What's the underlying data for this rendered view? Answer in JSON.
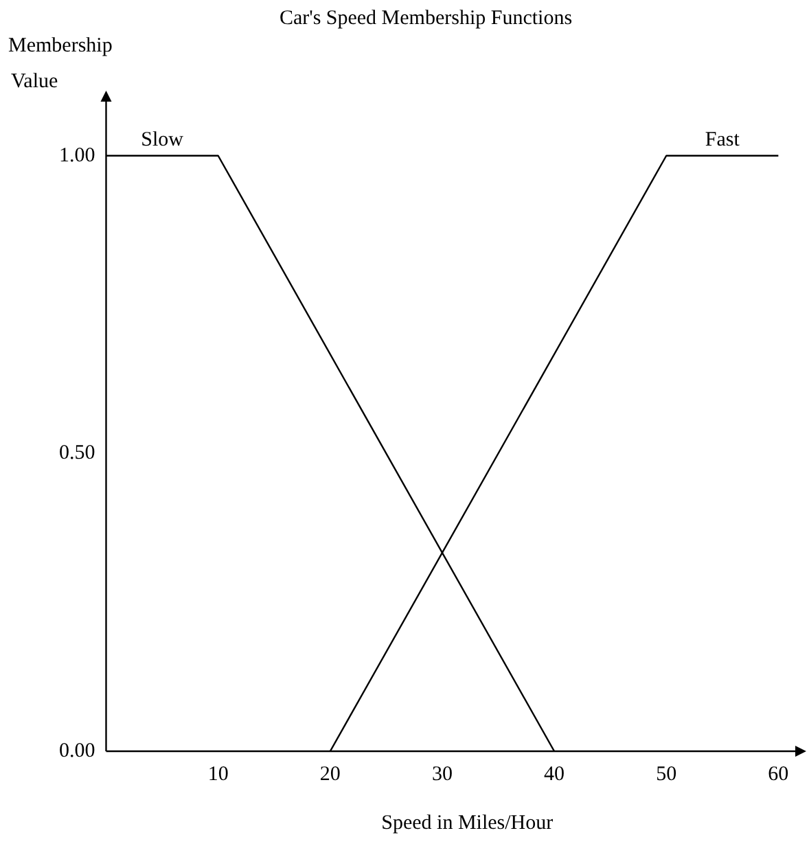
{
  "chart_data": {
    "type": "line",
    "title": "Car's Speed Membership Functions",
    "xlabel": "Speed in Miles/Hour",
    "ylabel": "Membership Value",
    "series": [
      {
        "name": "Slow",
        "color": "#000000",
        "x": [
          0,
          10,
          40
        ],
        "values": [
          1,
          1,
          0
        ]
      },
      {
        "name": "Fast",
        "color": "#000000",
        "x": [
          20,
          50,
          60
        ],
        "values": [
          0,
          1,
          1
        ]
      }
    ],
    "xlim": [
      0,
      62
    ],
    "xticks": [
      10,
      20,
      30,
      40,
      50,
      60
    ],
    "ylim": [
      0,
      1.1
    ],
    "yticks": [
      {
        "value": 0,
        "label": "0.00"
      },
      {
        "value": 0.5,
        "label": "0.50"
      },
      {
        "value": 1,
        "label": "1.00"
      }
    ],
    "grid": false,
    "legend": false,
    "marker": "none",
    "line_style": "solid"
  }
}
